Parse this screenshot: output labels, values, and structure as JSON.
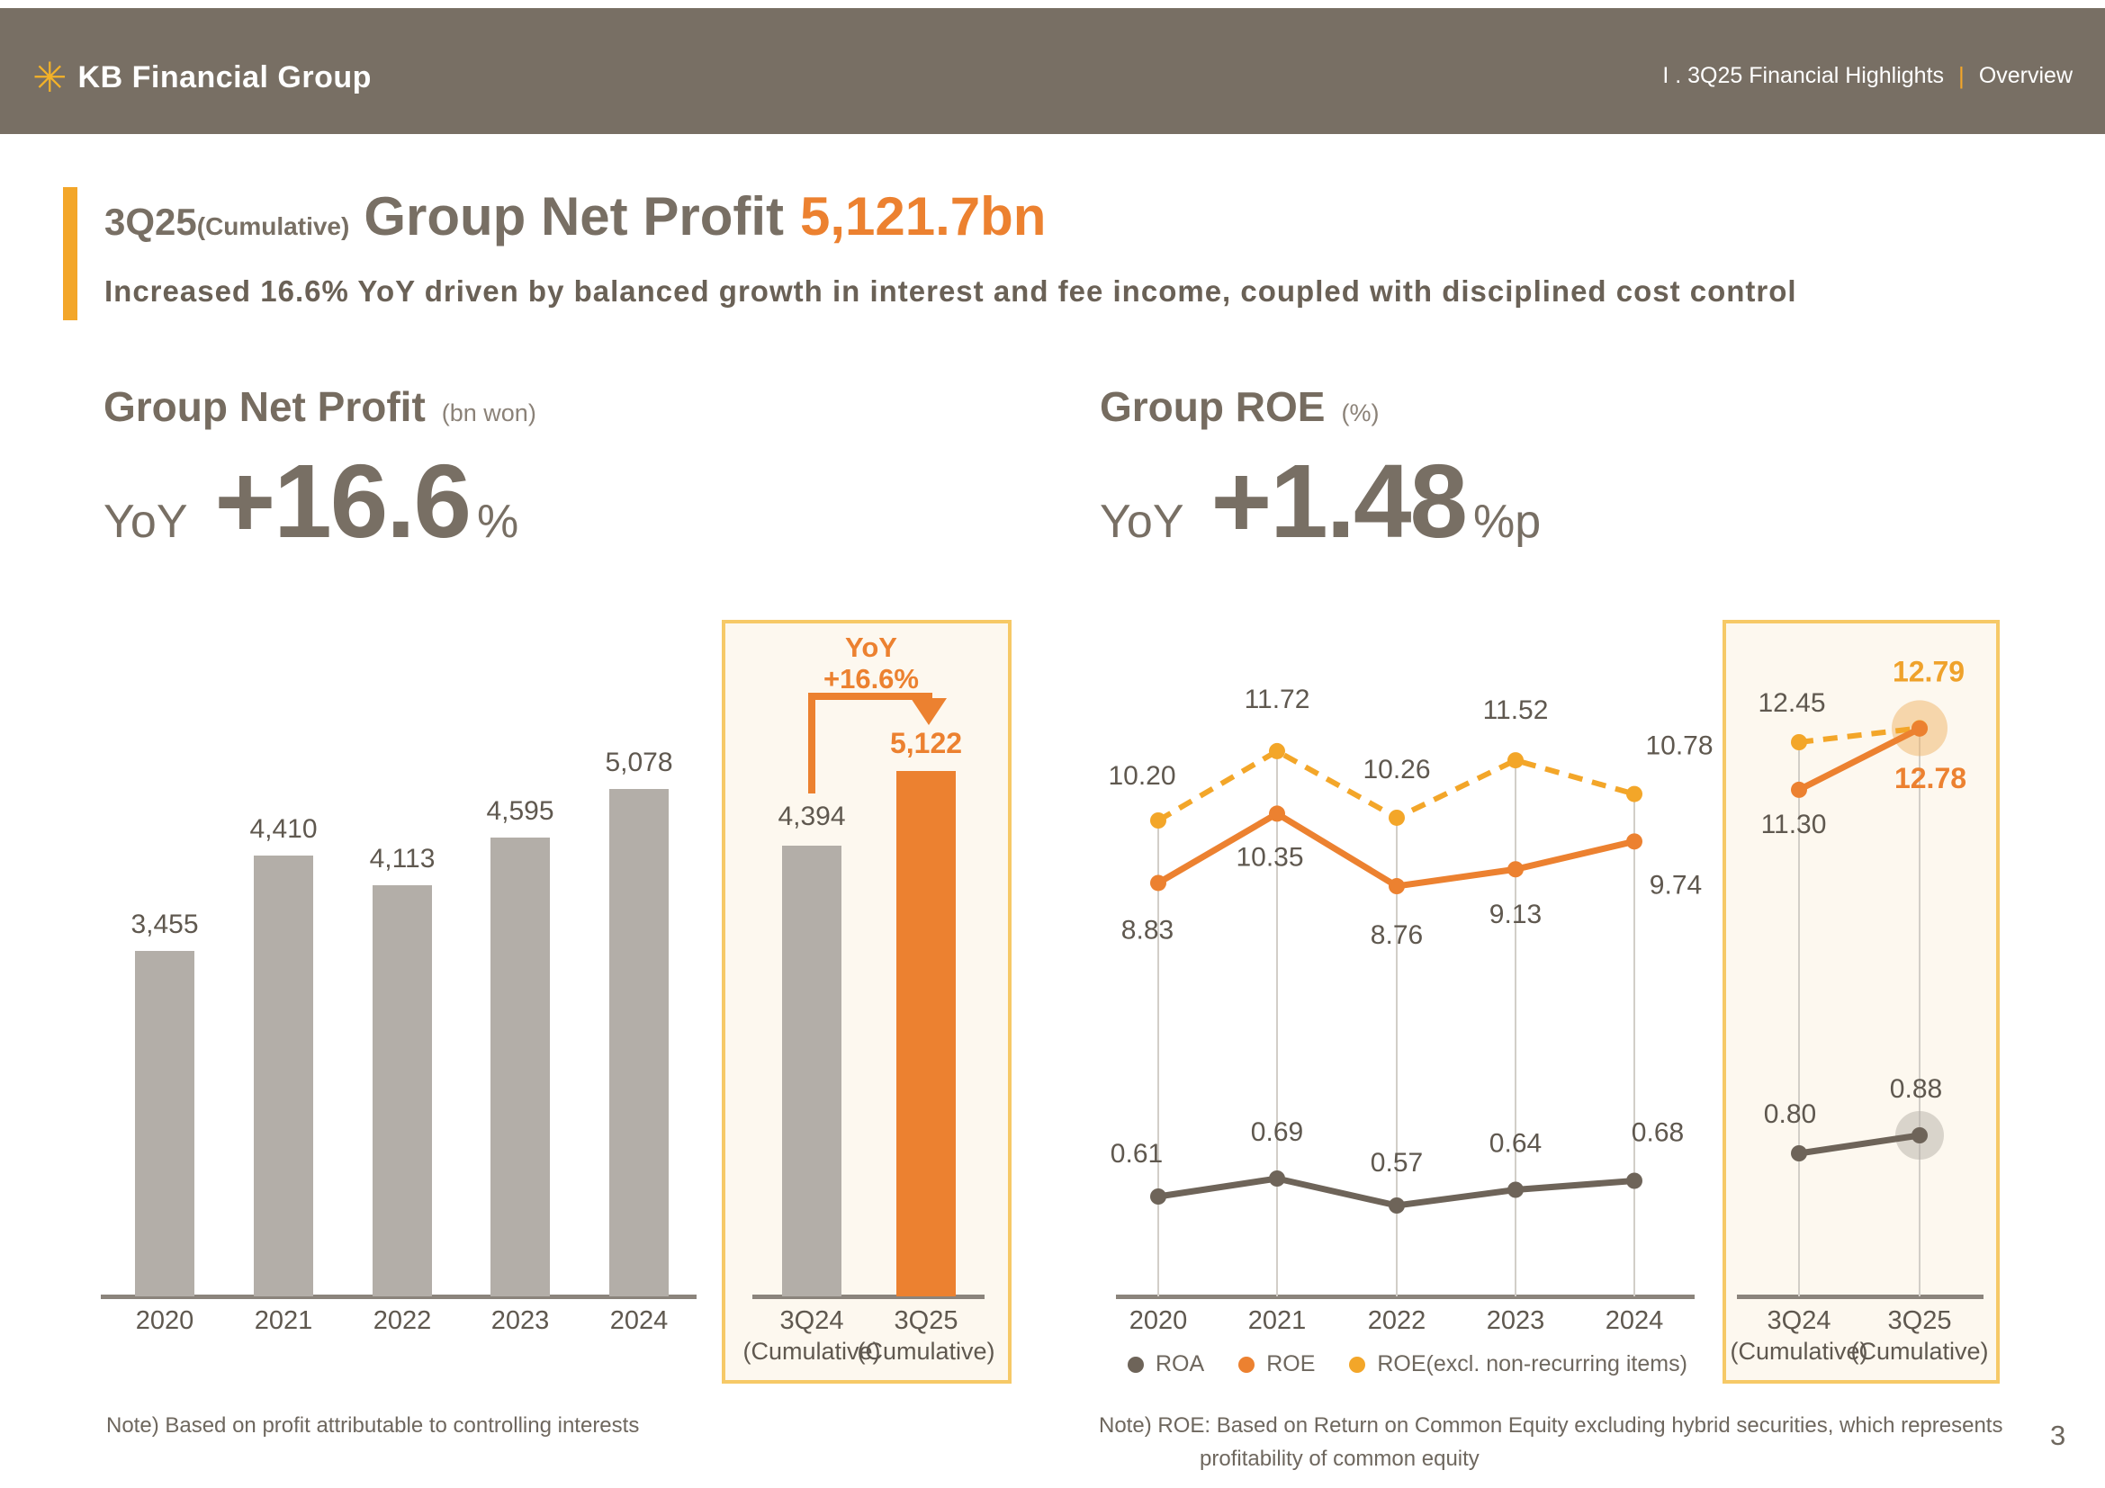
{
  "header": {
    "logo_text": "KB Financial Group",
    "breadcrumb_section": "I . 3Q25 Financial Highlights",
    "breadcrumb_divider": "|",
    "breadcrumb_page": "Overview"
  },
  "icons": {
    "logo_star": "✳"
  },
  "title": {
    "prefix": "3Q25",
    "prefix_sub": "(Cumulative)",
    "main": "Group Net Profit",
    "value": "5,121.7bn",
    "subtitle": "Increased 16.6% YoY driven by balanced growth in interest and fee income, coupled with disciplined cost control"
  },
  "net_profit_section": {
    "heading": "Group Net Profit",
    "unit": "(bn won)",
    "yoy_label": "YoY",
    "yoy_value": "+16.6",
    "yoy_suffix": "%"
  },
  "roe_section": {
    "heading": "Group ROE",
    "unit": "(%)",
    "yoy_label": "YoY",
    "yoy_value": "+1.48",
    "yoy_suffix": "%p"
  },
  "chart_data": [
    {
      "type": "bar",
      "title": "Group Net Profit (bn won)",
      "xlabel": "",
      "ylabel": "bn won",
      "grid": false,
      "categories": [
        "2020",
        "2021",
        "2022",
        "2023",
        "2024"
      ],
      "values": [
        3455,
        4410,
        4113,
        4595,
        5078
      ],
      "value_labels": [
        "3,455",
        "4,410",
        "4,113",
        "4,595",
        "5,078"
      ],
      "bar_color": "#b3aea8",
      "highlight": {
        "categories": [
          "3Q24",
          "3Q25"
        ],
        "category_sub": "(Cumulative)",
        "values": [
          4394,
          5122
        ],
        "value_labels": [
          "4,394",
          "5,122"
        ],
        "bar_colors": [
          "#b3aea8",
          "#ec8130"
        ],
        "annotation_line1": "YoY",
        "annotation_line2": "+16.6%"
      }
    },
    {
      "type": "line",
      "title": "Group ROE (%)",
      "xlabel": "",
      "ylabel": "%",
      "grid": true,
      "legend_position": "bottom",
      "categories": [
        "2020",
        "2021",
        "2022",
        "2023",
        "2024"
      ],
      "series": [
        {
          "name": "ROA",
          "color": "#6e6459",
          "style": "solid",
          "values": [
            0.61,
            0.69,
            0.57,
            0.64,
            0.68
          ],
          "labels": [
            "0.61",
            "0.69",
            "0.57",
            "0.64",
            "0.68"
          ]
        },
        {
          "name": "ROE",
          "color": "#ec8130",
          "style": "solid",
          "values": [
            8.83,
            10.35,
            8.76,
            9.13,
            9.74
          ],
          "labels": [
            "8.83",
            "10.35",
            "8.76",
            "9.13",
            "9.74"
          ]
        },
        {
          "name": "ROE(excl. non-recurring items)",
          "color": "#f3a629",
          "style": "dashed",
          "values": [
            10.2,
            11.72,
            10.26,
            11.52,
            10.78
          ],
          "labels": [
            "10.20",
            "11.72",
            "10.26",
            "11.52",
            "10.78"
          ]
        }
      ],
      "highlight": {
        "categories": [
          "3Q24",
          "3Q25"
        ],
        "category_sub": "(Cumulative)",
        "series": [
          {
            "name": "ROA",
            "values": [
              0.8,
              0.88
            ],
            "labels": [
              "0.80",
              "0.88"
            ]
          },
          {
            "name": "ROE",
            "values": [
              11.3,
              12.78
            ],
            "labels": [
              "11.30",
              "12.78"
            ]
          },
          {
            "name": "ROE(excl. non-recurring items)",
            "values": [
              12.45,
              12.79
            ],
            "labels": [
              "12.45",
              "12.79"
            ]
          }
        ]
      }
    }
  ],
  "notes": {
    "left": "Note) Based on profit attributable to controlling interests",
    "right_line1": "Note) ROE: Based on Return on Common Equity excluding hybrid securities, which represents",
    "right_line2": "profitability of common equity"
  },
  "page_number": "3",
  "colors": {
    "header_bg": "#786f64",
    "accent_gold": "#f3a629",
    "orange": "#ec8130",
    "bar_gray": "#b3aea8",
    "box_border": "#f6c967",
    "box_bg": "#fdf8ef",
    "axis": "#8b847c",
    "text_dark": "#5f584f"
  }
}
